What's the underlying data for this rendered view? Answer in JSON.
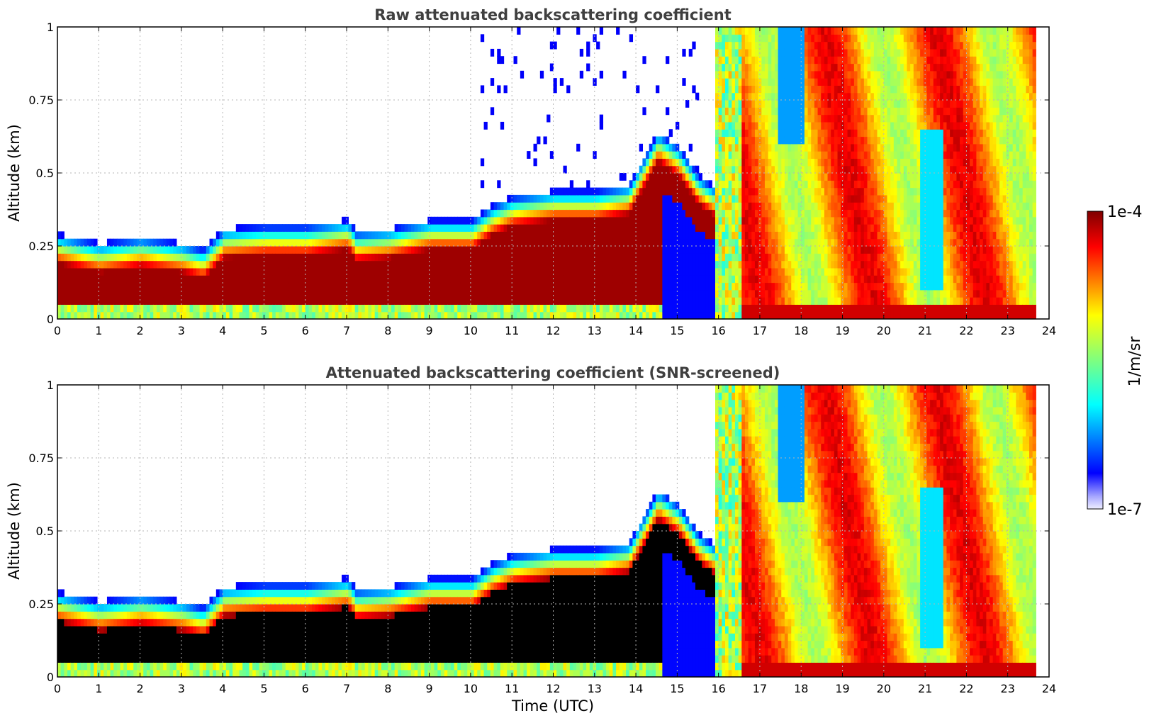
{
  "chart_data": [
    {
      "type": "heatmap",
      "title": "Raw attenuated backscattering coefficient",
      "xlabel": "",
      "ylabel": "Altitude (km)",
      "xlim": [
        0,
        24
      ],
      "ylim": [
        0,
        1
      ],
      "xticks": [
        "0",
        "1",
        "2",
        "3",
        "4",
        "5",
        "6",
        "7",
        "8",
        "9",
        "10",
        "11",
        "12",
        "13",
        "14",
        "15",
        "16",
        "17",
        "18",
        "19",
        "20",
        "21",
        "22",
        "23",
        "24"
      ],
      "yticks": [
        "0",
        "0.25",
        "0.5",
        "0.75",
        "1"
      ],
      "grid": true,
      "colormap": "jet",
      "color_scale": "log",
      "data_end_hour": 23.65,
      "layer_profile": {
        "hours": [
          0,
          1,
          2,
          3,
          3.5,
          4,
          5,
          6,
          7,
          7.2,
          8,
          9,
          10,
          10.5,
          11,
          12,
          13,
          13.8,
          14.5,
          15,
          15.5,
          16,
          16.5
        ],
        "top_km": [
          0.25,
          0.22,
          0.24,
          0.22,
          0.2,
          0.27,
          0.28,
          0.28,
          0.3,
          0.26,
          0.27,
          0.3,
          0.3,
          0.35,
          0.38,
          0.4,
          0.4,
          0.42,
          0.6,
          0.55,
          0.45,
          0.4,
          0.3
        ]
      },
      "fog_period_hours": [
        16.5,
        23.65
      ]
    },
    {
      "type": "heatmap",
      "title": "Attenuated backscattering coefficient (SNR-screened)",
      "xlabel": "Time (UTC)",
      "ylabel": "Altitude (km)",
      "xlim": [
        0,
        24
      ],
      "ylim": [
        0,
        1
      ],
      "xticks": [
        "0",
        "1",
        "2",
        "3",
        "4",
        "5",
        "6",
        "7",
        "8",
        "9",
        "10",
        "11",
        "12",
        "13",
        "14",
        "15",
        "16",
        "17",
        "18",
        "19",
        "20",
        "21",
        "22",
        "23",
        "24"
      ],
      "yticks": [
        "0",
        "0.25",
        "0.5",
        "0.75",
        "1"
      ],
      "grid": true,
      "colormap": "jet",
      "color_scale": "log",
      "screened_color": "#000000"
    }
  ],
  "colorbar": {
    "label": "1/m/sr",
    "max_label": "1e-4",
    "min_label": "1e-7",
    "vmin": 1e-07,
    "vmax": 0.0001
  }
}
